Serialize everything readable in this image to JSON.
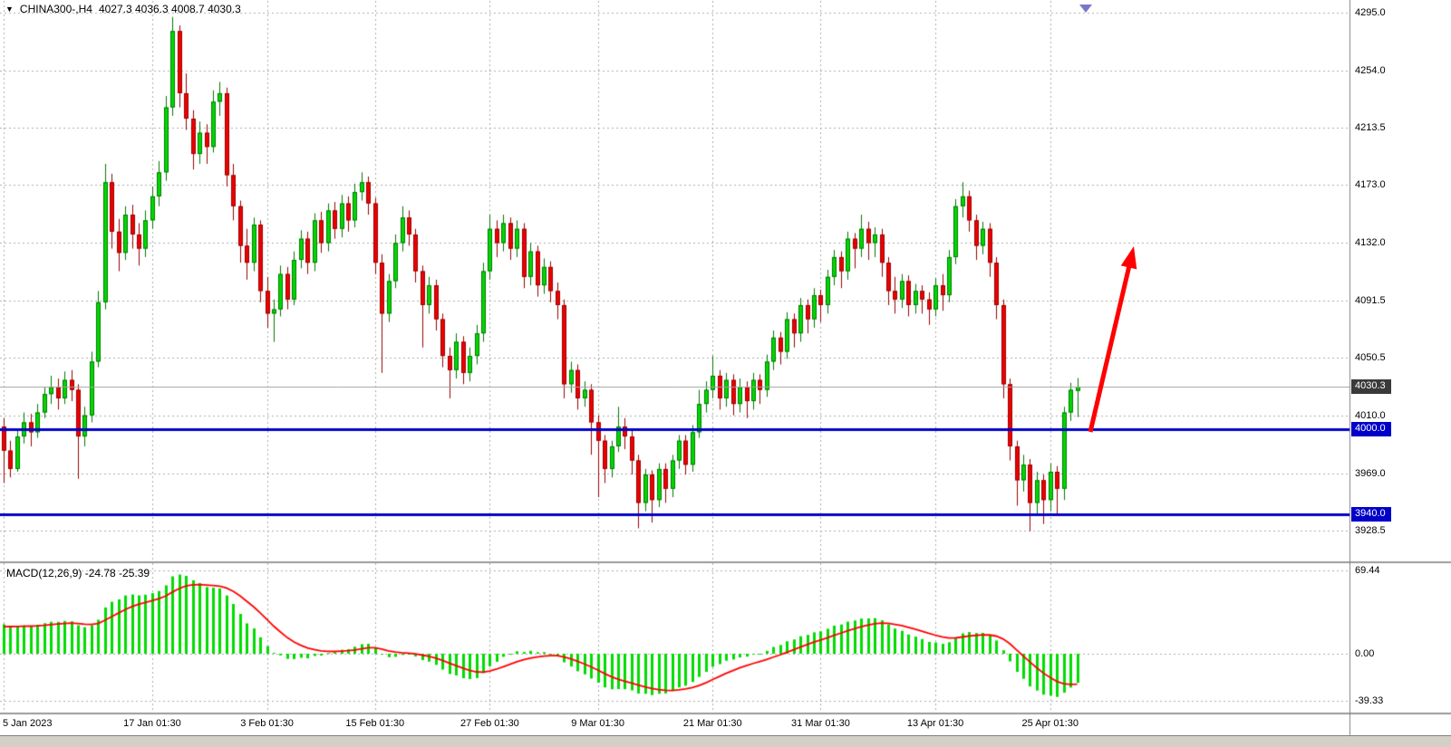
{
  "header": {
    "dropdown_icon": "▼",
    "symbol": "CHINA300-,H4",
    "ohlc": "4027.3 4036.3 4008.7 4030.3"
  },
  "indicator": {
    "label": "MACD(12,26,9) -24.78 -25.39"
  },
  "colors": {
    "bull_fill": "#00D800",
    "bull_border": "#007800",
    "bear_fill": "#EE0000",
    "bear_border": "#990000",
    "macd_hist": "#00DC00",
    "macd_signal": "#FF0000",
    "grid": "#ABABAB",
    "bid_line": "#A0A0A0",
    "current_badge_bg": "#3A3A3A",
    "level_badge_bg": "#0000C8",
    "panel_divider": "#9A9A9A",
    "axis_separator": "#808080",
    "axis_text": "#000000",
    "background": "#FFFFFF"
  },
  "chart_data": {
    "type": "candlestick",
    "symbol": "CHINA300-,H4",
    "timeframe": "H4",
    "open": 4027.3,
    "high": 4036.3,
    "low": 4008.7,
    "close": 4030.3,
    "current_price": "4030.3",
    "price_range": {
      "min": 3920,
      "max": 4304
    },
    "grid": true,
    "price_ticks": [
      "4295.0",
      "4254.0",
      "4213.5",
      "4173.0",
      "4132.0",
      "4091.5",
      "4050.5",
      "4010.0",
      "3969.0",
      "3928.5"
    ],
    "time_ticks": [
      {
        "i": 0,
        "label": "5 Jan 2023"
      },
      {
        "i": 22,
        "label": "17 Jan 01:30"
      },
      {
        "i": 39,
        "label": "3 Feb 01:30"
      },
      {
        "i": 55,
        "label": "15 Feb 01:30"
      },
      {
        "i": 72,
        "label": "27 Feb 01:30"
      },
      {
        "i": 88,
        "label": "9 Mar 01:30"
      },
      {
        "i": 105,
        "label": "21 Mar 01:30"
      },
      {
        "i": 121,
        "label": "31 Mar 01:30"
      },
      {
        "i": 138,
        "label": "13 Apr 01:30"
      },
      {
        "i": 155,
        "label": "25 Apr 01:30"
      }
    ],
    "hlines": [
      {
        "price": 4000.0,
        "label": "4000.0",
        "color": "#0000C8",
        "width": 3
      },
      {
        "price": 3940.0,
        "label": "3940.0",
        "color": "#0000C8",
        "width": 3
      }
    ],
    "arrow": {
      "from": [
        1203,
        477
      ],
      "to": [
        1251,
        272
      ],
      "color": "#FF0000",
      "width": 5
    },
    "macd": {
      "params": "12,26,9",
      "main": -24.78,
      "signal": -25.39,
      "axis_ticks": [
        "69.44",
        "0.00",
        "-39.33"
      ]
    },
    "candles": [
      [
        4002,
        4008,
        3962,
        3985
      ],
      [
        3985,
        3992,
        3966,
        3972
      ],
      [
        3972,
        3999,
        3970,
        3995
      ],
      [
        3995,
        4012,
        3990,
        4005
      ],
      [
        4005,
        4011,
        3988,
        3998
      ],
      [
        3998,
        4018,
        3994,
        4012
      ],
      [
        4012,
        4030,
        4008,
        4025
      ],
      [
        4025,
        4038,
        4018,
        4030
      ],
      [
        4030,
        4036,
        4014,
        4022
      ],
      [
        4022,
        4041,
        4018,
        4035
      ],
      [
        4035,
        4042,
        4020,
        4028
      ],
      [
        4028,
        4032,
        3965,
        3995
      ],
      [
        3995,
        4016,
        3988,
        4010
      ],
      [
        4010,
        4055,
        4005,
        4048
      ],
      [
        4048,
        4098,
        4044,
        4090
      ],
      [
        4090,
        4188,
        4085,
        4175
      ],
      [
        4175,
        4181,
        4128,
        4140
      ],
      [
        4140,
        4149,
        4112,
        4125
      ],
      [
        4125,
        4158,
        4120,
        4152
      ],
      [
        4152,
        4159,
        4128,
        4138
      ],
      [
        4138,
        4146,
        4116,
        4128
      ],
      [
        4128,
        4155,
        4122,
        4148
      ],
      [
        4148,
        4172,
        4142,
        4165
      ],
      [
        4165,
        4190,
        4158,
        4182
      ],
      [
        4182,
        4236,
        4176,
        4228
      ],
      [
        4228,
        4292,
        4222,
        4282
      ],
      [
        4282,
        4286,
        4228,
        4238
      ],
      [
        4238,
        4252,
        4212,
        4220
      ],
      [
        4220,
        4226,
        4184,
        4195
      ],
      [
        4195,
        4218,
        4188,
        4210
      ],
      [
        4210,
        4216,
        4188,
        4200
      ],
      [
        4200,
        4240,
        4196,
        4232
      ],
      [
        4232,
        4246,
        4222,
        4238
      ],
      [
        4238,
        4242,
        4172,
        4180
      ],
      [
        4180,
        4188,
        4148,
        4158
      ],
      [
        4158,
        4162,
        4118,
        4130
      ],
      [
        4130,
        4142,
        4106,
        4118
      ],
      [
        4118,
        4150,
        4112,
        4145
      ],
      [
        4145,
        4148,
        4090,
        4098
      ],
      [
        4098,
        4108,
        4072,
        4082
      ],
      [
        4082,
        4092,
        4062,
        4085
      ],
      [
        4085,
        4116,
        4080,
        4110
      ],
      [
        4110,
        4115,
        4085,
        4092
      ],
      [
        4092,
        4126,
        4088,
        4120
      ],
      [
        4120,
        4141,
        4114,
        4135
      ],
      [
        4135,
        4140,
        4110,
        4118
      ],
      [
        4118,
        4153,
        4112,
        4148
      ],
      [
        4148,
        4154,
        4125,
        4132
      ],
      [
        4132,
        4160,
        4126,
        4155
      ],
      [
        4155,
        4161,
        4135,
        4142
      ],
      [
        4142,
        4166,
        4136,
        4160
      ],
      [
        4160,
        4165,
        4140,
        4148
      ],
      [
        4148,
        4174,
        4143,
        4168
      ],
      [
        4168,
        4182,
        4162,
        4175
      ],
      [
        4175,
        4179,
        4152,
        4160
      ],
      [
        4160,
        4164,
        4110,
        4118
      ],
      [
        4118,
        4124,
        4040,
        4082
      ],
      [
        4082,
        4110,
        4076,
        4105
      ],
      [
        4105,
        4138,
        4100,
        4132
      ],
      [
        4132,
        4158,
        4126,
        4150
      ],
      [
        4150,
        4155,
        4130,
        4138
      ],
      [
        4138,
        4142,
        4104,
        4112
      ],
      [
        4112,
        4116,
        4058,
        4088
      ],
      [
        4088,
        4108,
        4082,
        4102
      ],
      [
        4102,
        4106,
        4070,
        4078
      ],
      [
        4078,
        4082,
        4044,
        4052
      ],
      [
        4052,
        4058,
        4022,
        4042
      ],
      [
        4042,
        4068,
        4036,
        4062
      ],
      [
        4062,
        4066,
        4032,
        4040
      ],
      [
        4040,
        4058,
        4034,
        4052
      ],
      [
        4052,
        4074,
        4046,
        4068
      ],
      [
        4068,
        4118,
        4062,
        4112
      ],
      [
        4112,
        4152,
        4106,
        4142
      ],
      [
        4142,
        4148,
        4122,
        4132
      ],
      [
        4132,
        4152,
        4126,
        4146
      ],
      [
        4146,
        4150,
        4120,
        4128
      ],
      [
        4128,
        4148,
        4122,
        4142
      ],
      [
        4142,
        4146,
        4100,
        4108
      ],
      [
        4108,
        4132,
        4102,
        4126
      ],
      [
        4126,
        4130,
        4094,
        4102
      ],
      [
        4102,
        4121,
        4096,
        4115
      ],
      [
        4115,
        4119,
        4090,
        4098
      ],
      [
        4098,
        4104,
        4078,
        4088
      ],
      [
        4088,
        4092,
        4022,
        4032
      ],
      [
        4032,
        4048,
        4026,
        4042
      ],
      [
        4042,
        4046,
        4014,
        4022
      ],
      [
        4022,
        4034,
        4016,
        4028
      ],
      [
        4028,
        4032,
        3982,
        4005
      ],
      [
        4005,
        4010,
        3952,
        3992
      ],
      [
        3992,
        3996,
        3962,
        3972
      ],
      [
        3972,
        3992,
        3966,
        3988
      ],
      [
        3988,
        4016,
        3984,
        4002
      ],
      [
        4002,
        4008,
        3986,
        3995
      ],
      [
        3995,
        3999,
        3968,
        3978
      ],
      [
        3978,
        3982,
        3930,
        3948
      ],
      [
        3948,
        3972,
        3942,
        3968
      ],
      [
        3968,
        3971,
        3934,
        3950
      ],
      [
        3950,
        3976,
        3945,
        3972
      ],
      [
        3972,
        3976,
        3948,
        3958
      ],
      [
        3958,
        3982,
        3952,
        3978
      ],
      [
        3978,
        3996,
        3972,
        3992
      ],
      [
        3992,
        3996,
        3968,
        3975
      ],
      [
        3975,
        4003,
        3970,
        3998
      ],
      [
        3998,
        4028,
        3994,
        4018
      ],
      [
        4018,
        4034,
        4012,
        4028
      ],
      [
        4028,
        4052,
        4022,
        4038
      ],
      [
        4038,
        4042,
        4014,
        4022
      ],
      [
        4022,
        4040,
        4016,
        4035
      ],
      [
        4035,
        4039,
        4010,
        4018
      ],
      [
        4018,
        4036,
        4012,
        4030
      ],
      [
        4030,
        4034,
        4008,
        4020
      ],
      [
        4020,
        4040,
        4014,
        4035
      ],
      [
        4035,
        4039,
        4018,
        4028
      ],
      [
        4028,
        4053,
        4023,
        4048
      ],
      [
        4048,
        4070,
        4042,
        4065
      ],
      [
        4065,
        4069,
        4046,
        4055
      ],
      [
        4055,
        4083,
        4050,
        4078
      ],
      [
        4078,
        4082,
        4058,
        4068
      ],
      [
        4068,
        4093,
        4062,
        4088
      ],
      [
        4088,
        4092,
        4068,
        4078
      ],
      [
        4078,
        4100,
        4072,
        4095
      ],
      [
        4095,
        4099,
        4076,
        4088
      ],
      [
        4088,
        4113,
        4082,
        4108
      ],
      [
        4108,
        4127,
        4102,
        4122
      ],
      [
        4122,
        4126,
        4100,
        4112
      ],
      [
        4112,
        4140,
        4106,
        4135
      ],
      [
        4135,
        4139,
        4114,
        4128
      ],
      [
        4128,
        4152,
        4122,
        4142
      ],
      [
        4142,
        4147,
        4120,
        4132
      ],
      [
        4132,
        4143,
        4122,
        4138
      ],
      [
        4138,
        4142,
        4108,
        4118
      ],
      [
        4118,
        4122,
        4088,
        4098
      ],
      [
        4098,
        4108,
        4082,
        4092
      ],
      [
        4092,
        4110,
        4086,
        4105
      ],
      [
        4105,
        4109,
        4080,
        4088
      ],
      [
        4088,
        4103,
        4082,
        4098
      ],
      [
        4098,
        4102,
        4082,
        4092
      ],
      [
        4092,
        4097,
        4074,
        4085
      ],
      [
        4085,
        4107,
        4080,
        4102
      ],
      [
        4102,
        4110,
        4084,
        4095
      ],
      [
        4095,
        4127,
        4090,
        4122
      ],
      [
        4122,
        4163,
        4117,
        4158
      ],
      [
        4158,
        4175,
        4150,
        4165
      ],
      [
        4165,
        4169,
        4140,
        4148
      ],
      [
        4148,
        4152,
        4120,
        4130
      ],
      [
        4130,
        4147,
        4124,
        4142
      ],
      [
        4142,
        4146,
        4108,
        4118
      ],
      [
        4118,
        4122,
        4078,
        4088
      ],
      [
        4088,
        4092,
        4022,
        4032
      ],
      [
        4032,
        4036,
        3978,
        3988
      ],
      [
        3988,
        3992,
        3946,
        3964
      ],
      [
        3964,
        3982,
        3956,
        3975
      ],
      [
        3975,
        3979,
        3928,
        3948
      ],
      [
        3948,
        3970,
        3940,
        3964
      ],
      [
        3964,
        3968,
        3933,
        3950
      ],
      [
        3950,
        3976,
        3942,
        3970
      ],
      [
        3970,
        3974,
        3940,
        3958
      ],
      [
        3958,
        4016,
        3950,
        4012
      ],
      [
        4012,
        4033,
        4006,
        4028
      ],
      [
        4027.3,
        4036.3,
        4008.7,
        4030.3
      ]
    ]
  }
}
